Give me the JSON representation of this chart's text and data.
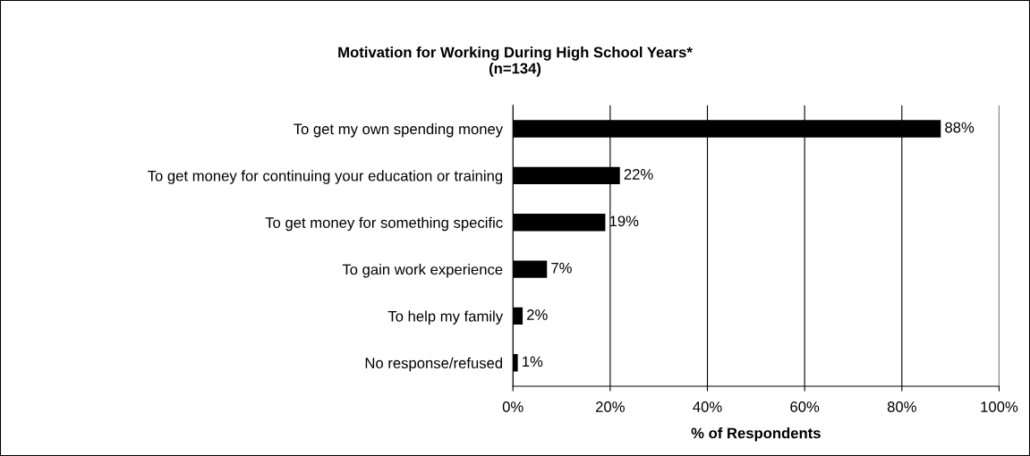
{
  "chart_data": {
    "type": "bar",
    "orientation": "horizontal",
    "title": "Motivation for Working During High School Years*\n(n=134)",
    "xlabel": "% of Respondents",
    "categories": [
      "To get my own spending money",
      "To get money for continuing your education or training",
      "To get money for something specific",
      "To gain work experience",
      "To help my family",
      "No response/refused"
    ],
    "values": [
      88,
      22,
      19,
      7,
      2,
      1
    ],
    "color": "#000000",
    "value_labels": [
      "88%",
      "22%",
      "19%",
      "7%",
      "2%",
      "1%"
    ],
    "xlim": [
      0,
      100
    ],
    "xticks": [
      {
        "value": 0,
        "label": "0%"
      },
      {
        "value": 20,
        "label": "20%"
      },
      {
        "value": 40,
        "label": "40%"
      },
      {
        "value": 60,
        "label": "60%"
      },
      {
        "value": 80,
        "label": "80%"
      },
      {
        "value": 100,
        "label": "100%"
      }
    ],
    "grid": "x",
    "legend": false
  }
}
